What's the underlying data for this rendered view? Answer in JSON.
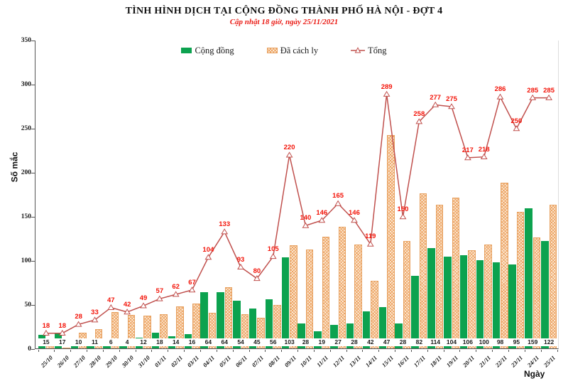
{
  "header": {
    "title": "TÌNH HÌNH DỊCH TẠI CỘNG ĐỒNG THÀNH PHỐ HÀ NỘI - ĐỢT 4",
    "subtitle": "Cập nhật 18 giờ, ngày 25/11/2021"
  },
  "legend": {
    "items": [
      {
        "label": "Cộng đồng",
        "swatch": "green-bar"
      },
      {
        "label": "Đã cách ly",
        "swatch": "orange-hatch-bar"
      },
      {
        "label": "Tổng",
        "swatch": "red-line-triangle-marker"
      }
    ]
  },
  "axes": {
    "y_label": "Số mắc",
    "x_label": "Ngày",
    "y_ticks": [
      0,
      50,
      100,
      150,
      200,
      250,
      300,
      350
    ]
  },
  "colors": {
    "community_green": "#0ca24f",
    "quarantine_fill": "#fdf0df",
    "quarantine_hatch": "#eca05e",
    "quarantine_border": "#e7a160",
    "total_line": "#c0504d",
    "value_label_red": "#f31409",
    "subtitle_red": "#ea1c16"
  },
  "chart_data": {
    "type": "bar+line",
    "title": "TÌNH HÌNH DỊCH TẠI CỘNG ĐỒNG THÀNH PHỐ HÀ NỘI - ĐỢT 4",
    "subtitle": "Cập nhật 18 giờ, ngày 25/11/2021",
    "xlabel": "Ngày",
    "ylabel": "Số mắc",
    "ylim": [
      0,
      350
    ],
    "grid": false,
    "legend_position": "top",
    "categories": [
      "25/10",
      "26/10",
      "27/10",
      "28/10",
      "29/10",
      "30/10",
      "31/10",
      "01/11",
      "02/11",
      "03/11",
      "04/11",
      "05/11",
      "06/11",
      "07/11",
      "08/11",
      "09/11",
      "10/11",
      "11/11",
      "12/11",
      "13/11",
      "14/11",
      "15/11",
      "16/11",
      "17/11",
      "18/11",
      "19/11",
      "20/11",
      "21/11",
      "22/11",
      "23/11",
      "24/11",
      "25/11"
    ],
    "series": [
      {
        "name": "Cộng đồng",
        "type": "bar",
        "color": "#0ca24f",
        "labeled": true,
        "values": [
          15,
          17,
          10,
          11,
          6,
          4,
          12,
          18,
          14,
          16,
          64,
          64,
          54,
          45,
          56,
          103,
          28,
          19,
          27,
          28,
          42,
          47,
          28,
          82,
          114,
          104,
          106,
          100,
          98,
          95,
          159,
          122
        ]
      },
      {
        "name": "Đã cách ly",
        "type": "bar",
        "color": "#eca05e",
        "labeled": false,
        "values": [
          3,
          1,
          18,
          22,
          41,
          38,
          37,
          39,
          48,
          51,
          40,
          69,
          39,
          35,
          49,
          117,
          112,
          127,
          138,
          118,
          77,
          242,
          122,
          176,
          163,
          171,
          111,
          118,
          188,
          155,
          126,
          163
        ]
      },
      {
        "name": "Tổng",
        "type": "line",
        "color": "#c0504d",
        "marker": "open-triangle",
        "labeled": true,
        "values": [
          18,
          18,
          28,
          33,
          47,
          42,
          49,
          57,
          62,
          67,
          104,
          133,
          93,
          80,
          105,
          220,
          140,
          146,
          165,
          146,
          119,
          289,
          150,
          258,
          277,
          275,
          217,
          218,
          286,
          250,
          285,
          285
        ]
      }
    ]
  }
}
